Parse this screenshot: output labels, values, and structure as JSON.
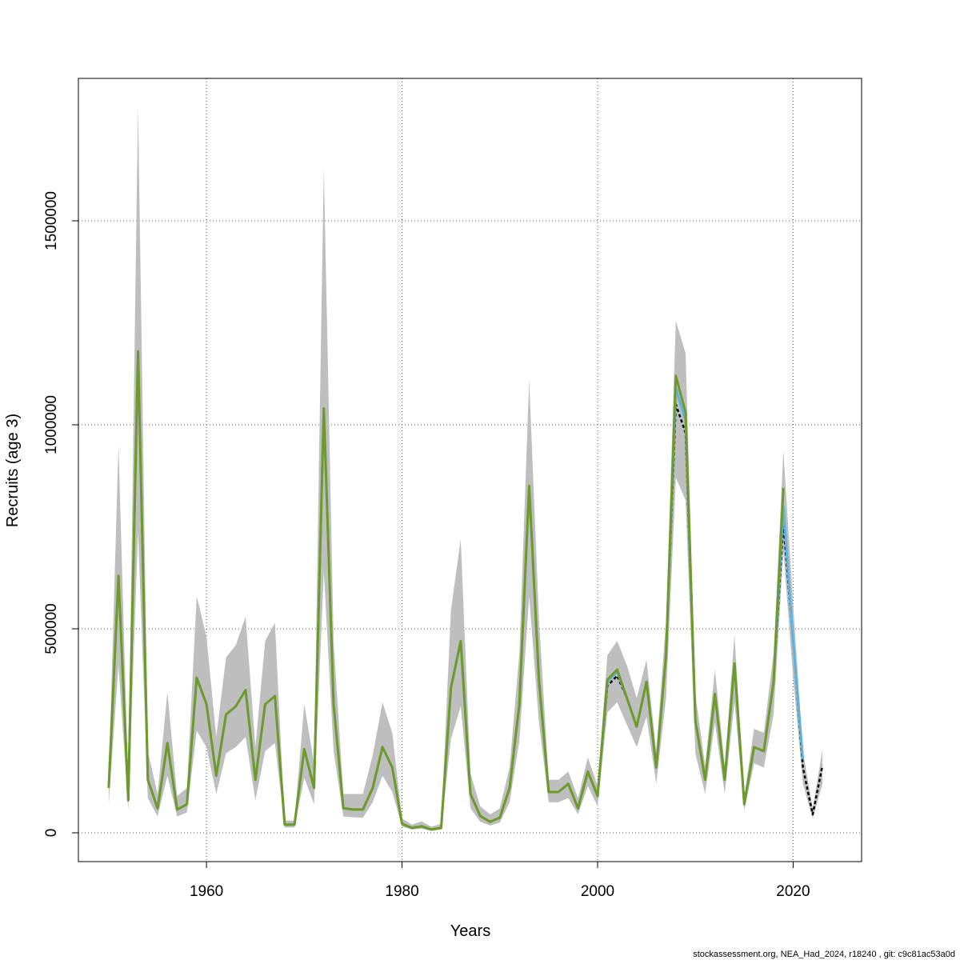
{
  "chart_data": {
    "type": "line",
    "x_label": "Years",
    "y_label": "Recruits (age 3)",
    "footnote": "stockassessment.org, NEA_Had_2024, r18240 , git: c9c81ac53a0d",
    "x": [
      1950,
      1951,
      1952,
      1953,
      1954,
      1955,
      1956,
      1957,
      1958,
      1959,
      1960,
      1961,
      1962,
      1963,
      1964,
      1965,
      1966,
      1967,
      1968,
      1969,
      1970,
      1971,
      1972,
      1973,
      1974,
      1975,
      1976,
      1977,
      1978,
      1979,
      1980,
      1981,
      1982,
      1983,
      1984,
      1985,
      1986,
      1987,
      1988,
      1989,
      1990,
      1991,
      1992,
      1993,
      1994,
      1995,
      1996,
      1997,
      1998,
      1999,
      2000,
      2001,
      2002,
      2003,
      2004,
      2005,
      2006,
      2007,
      2008,
      2009,
      2010,
      2011,
      2012,
      2013,
      2014,
      2015,
      2016,
      2017,
      2018,
      2019,
      2020,
      2021,
      2022,
      2023
    ],
    "band": {
      "color": "#bebebe",
      "upper": [
        130000,
        950000,
        120000,
        1780000,
        200000,
        95000,
        345000,
        90000,
        110000,
        580000,
        480000,
        235000,
        430000,
        460000,
        530000,
        210000,
        470000,
        515000,
        30000,
        30000,
        315000,
        170000,
        1630000,
        470000,
        95000,
        95000,
        95000,
        190000,
        320000,
        245000,
        35000,
        20000,
        28000,
        15000,
        22000,
        545000,
        720000,
        145000,
        65000,
        45000,
        60000,
        160000,
        440000,
        1110000,
        525000,
        130000,
        130000,
        150000,
        85000,
        185000,
        115000,
        435000,
        470000,
        410000,
        330000,
        425000,
        200000,
        520000,
        1255000,
        1175000,
        340000,
        165000,
        400000,
        165000,
        485000,
        90000,
        255000,
        245000,
        440000,
        935000,
        560000,
        200000,
        60000,
        205000
      ],
      "lower": [
        70000,
        410000,
        55000,
        740000,
        85000,
        40000,
        140000,
        40000,
        50000,
        250000,
        210000,
        95000,
        195000,
        210000,
        235000,
        80000,
        200000,
        220000,
        13000,
        13000,
        135000,
        70000,
        640000,
        200000,
        40000,
        38000,
        37000,
        75000,
        140000,
        100000,
        15000,
        8000,
        10000,
        5000,
        8000,
        230000,
        310000,
        60000,
        27000,
        18000,
        25000,
        75000,
        225000,
        580000,
        270000,
        75000,
        75000,
        85000,
        45000,
        115000,
        65000,
        295000,
        320000,
        265000,
        210000,
        285000,
        120000,
        330000,
        870000,
        815000,
        195000,
        95000,
        270000,
        95000,
        320000,
        55000,
        170000,
        160000,
        290000,
        690000,
        380000,
        120000,
        35000,
        120000
      ]
    },
    "series": [
      {
        "color": "#000000",
        "dashed": true,
        "values": [
          110000,
          630000,
          80000,
          1180000,
          130000,
          60000,
          220000,
          57000,
          70000,
          380000,
          315000,
          140000,
          290000,
          310000,
          350000,
          130000,
          315000,
          335000,
          20000,
          20000,
          205000,
          110000,
          1040000,
          315000,
          60000,
          57000,
          57000,
          110000,
          210000,
          160000,
          22000,
          12000,
          16000,
          8000,
          12000,
          355000,
          470000,
          95000,
          41000,
          27000,
          37000,
          110000,
          315000,
          850000,
          375000,
          100000,
          100000,
          120000,
          60000,
          150000,
          90000,
          360000,
          385000,
          330000,
          260000,
          370000,
          160000,
          435000,
          1050000,
          980000,
          275000,
          130000,
          340000,
          130000,
          415000,
          70000,
          210000,
          200000,
          370000,
          760000,
          470000,
          160000,
          45000,
          165000
        ]
      },
      {
        "color": "#5bb4e0",
        "values": [
          110000,
          630000,
          80000,
          1180000,
          130000,
          60000,
          220000,
          57000,
          70000,
          380000,
          315000,
          140000,
          290000,
          310000,
          350000,
          130000,
          315000,
          335000,
          20000,
          20000,
          205000,
          110000,
          1040000,
          315000,
          60000,
          57000,
          57000,
          110000,
          210000,
          160000,
          22000,
          12000,
          16000,
          8000,
          12000,
          355000,
          470000,
          95000,
          41000,
          27000,
          37000,
          110000,
          315000,
          850000,
          375000,
          100000,
          100000,
          120000,
          60000,
          150000,
          90000,
          370000,
          395000,
          330000,
          260000,
          370000,
          160000,
          435000,
          1090000,
          1010000,
          275000,
          130000,
          340000,
          130000,
          415000,
          70000,
          210000,
          200000,
          370000,
          800000,
          470000,
          180000,
          null,
          null
        ]
      },
      {
        "color": "#6f9a2a",
        "values": [
          110000,
          630000,
          80000,
          1180000,
          130000,
          60000,
          220000,
          57000,
          70000,
          380000,
          315000,
          140000,
          290000,
          310000,
          350000,
          130000,
          315000,
          335000,
          20000,
          20000,
          205000,
          110000,
          1040000,
          315000,
          60000,
          57000,
          57000,
          110000,
          210000,
          160000,
          22000,
          12000,
          16000,
          8000,
          12000,
          355000,
          470000,
          95000,
          41000,
          27000,
          37000,
          110000,
          315000,
          850000,
          375000,
          100000,
          100000,
          120000,
          60000,
          150000,
          90000,
          375000,
          400000,
          330000,
          260000,
          370000,
          160000,
          435000,
          1120000,
          1030000,
          275000,
          130000,
          340000,
          130000,
          415000,
          70000,
          210000,
          200000,
          370000,
          845000,
          null,
          null,
          null,
          null
        ]
      }
    ],
    "xlim": [
      1946.9,
      2027
    ],
    "ylim": [
      -70600,
      1849000
    ],
    "xticks": [
      1960,
      1980,
      2000,
      2020
    ],
    "yticks": [
      0,
      500000,
      1000000,
      1500000
    ],
    "grid": true
  }
}
